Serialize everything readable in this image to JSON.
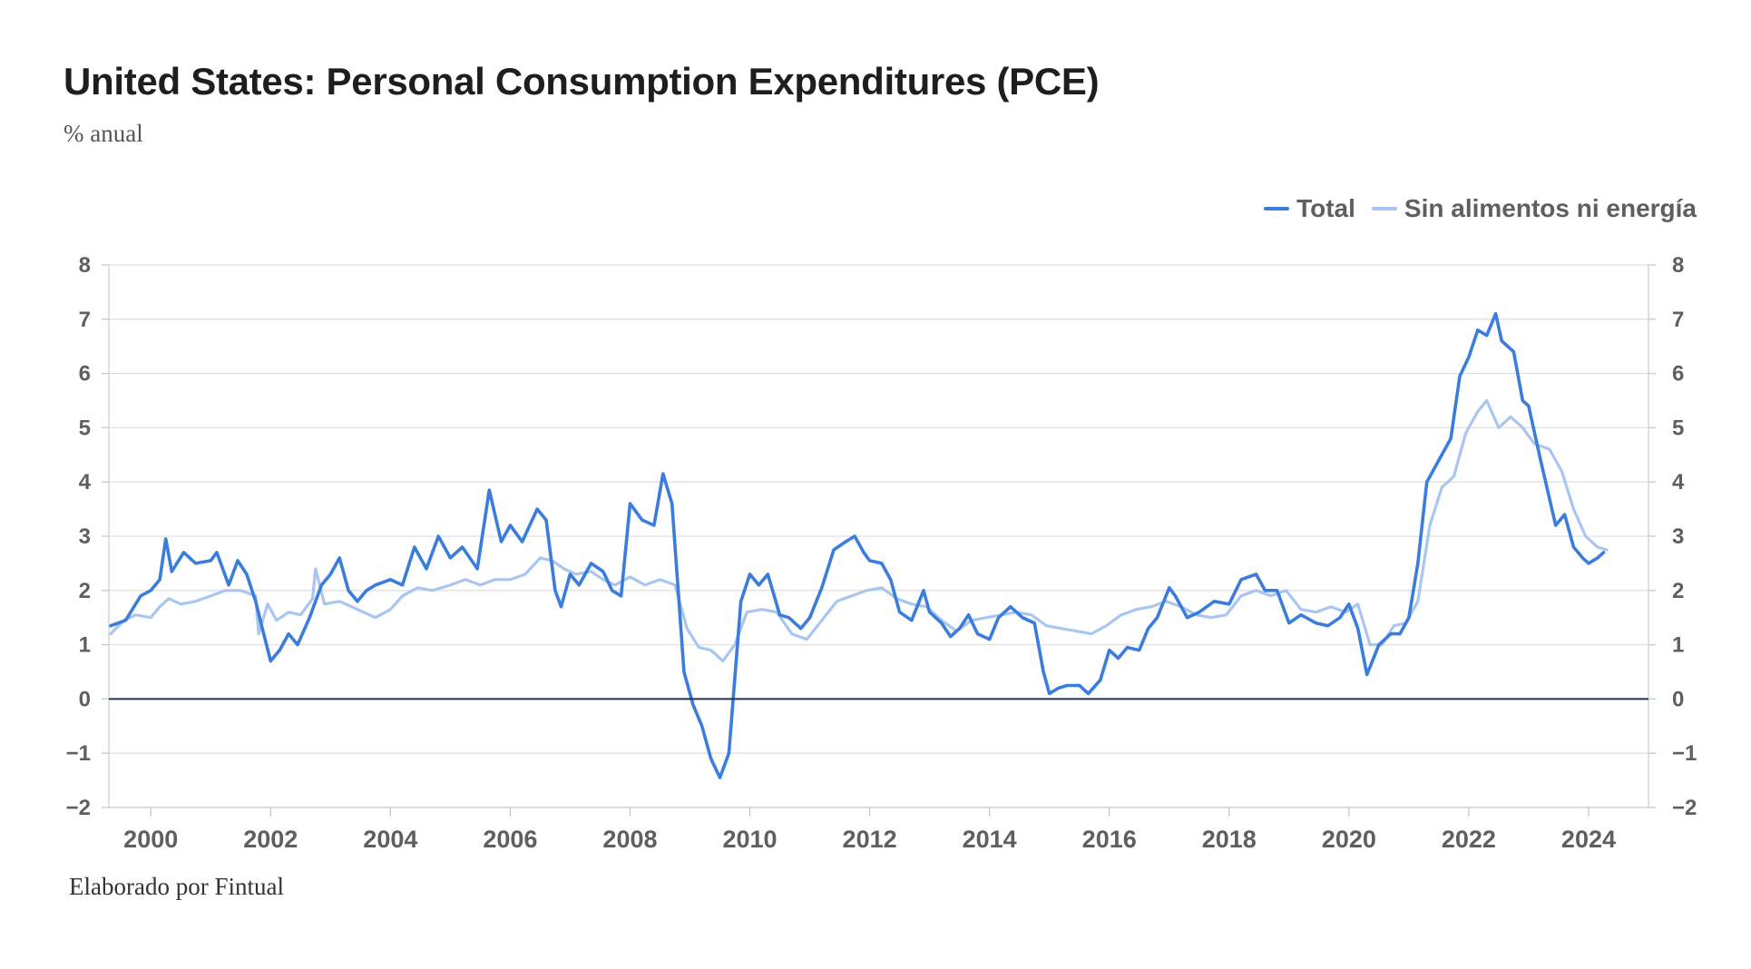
{
  "header": {
    "title": "United States: Personal Consumption Expenditures (PCE)",
    "subtitle": "% anual"
  },
  "footer": {
    "credit": "Elaborado por Fintual"
  },
  "colors": {
    "total": "#3b7ddd",
    "core": "#a9c6f0",
    "zero_line": "#1f3350",
    "grid": "#e0e0e0"
  },
  "chart_data": {
    "type": "line",
    "title": "United States: Personal Consumption Expenditures (PCE)",
    "subtitle": "% anual",
    "xlabel": "",
    "ylabel": "",
    "xlim": [
      1999.3,
      2025.0
    ],
    "ylim": [
      -2,
      8
    ],
    "y_ticks": [
      -2,
      -1,
      0,
      1,
      2,
      3,
      4,
      5,
      6,
      7,
      8
    ],
    "y_tick_labels": [
      "−2",
      "−1",
      "0",
      "1",
      "2",
      "3",
      "4",
      "5",
      "6",
      "7",
      "8"
    ],
    "x_ticks": [
      2000,
      2002,
      2004,
      2006,
      2008,
      2010,
      2012,
      2014,
      2016,
      2018,
      2020,
      2022,
      2024
    ],
    "x_tick_labels": [
      "2000",
      "2002",
      "2004",
      "2006",
      "2008",
      "2010",
      "2012",
      "2014",
      "2016",
      "2018",
      "2020",
      "2022",
      "2024"
    ],
    "legend_position": "top-right",
    "series": [
      {
        "name": "Total",
        "points": [
          [
            1999.33,
            1.35
          ],
          [
            1999.58,
            1.45
          ],
          [
            1999.83,
            1.9
          ],
          [
            2000.0,
            2.0
          ],
          [
            2000.15,
            2.2
          ],
          [
            2000.25,
            2.95
          ],
          [
            2000.35,
            2.35
          ],
          [
            2000.55,
            2.7
          ],
          [
            2000.75,
            2.5
          ],
          [
            2001.0,
            2.55
          ],
          [
            2001.1,
            2.7
          ],
          [
            2001.3,
            2.1
          ],
          [
            2001.45,
            2.55
          ],
          [
            2001.6,
            2.3
          ],
          [
            2001.75,
            1.8
          ],
          [
            2001.85,
            1.35
          ],
          [
            2002.0,
            0.7
          ],
          [
            2002.15,
            0.9
          ],
          [
            2002.3,
            1.2
          ],
          [
            2002.45,
            1.0
          ],
          [
            2002.65,
            1.5
          ],
          [
            2002.85,
            2.1
          ],
          [
            2003.0,
            2.3
          ],
          [
            2003.15,
            2.6
          ],
          [
            2003.3,
            2.0
          ],
          [
            2003.45,
            1.8
          ],
          [
            2003.6,
            2.0
          ],
          [
            2003.75,
            2.1
          ],
          [
            2004.0,
            2.2
          ],
          [
            2004.2,
            2.1
          ],
          [
            2004.4,
            2.8
          ],
          [
            2004.6,
            2.4
          ],
          [
            2004.8,
            3.0
          ],
          [
            2005.0,
            2.6
          ],
          [
            2005.2,
            2.8
          ],
          [
            2005.45,
            2.4
          ],
          [
            2005.65,
            3.85
          ],
          [
            2005.85,
            2.9
          ],
          [
            2006.0,
            3.2
          ],
          [
            2006.2,
            2.9
          ],
          [
            2006.45,
            3.5
          ],
          [
            2006.6,
            3.3
          ],
          [
            2006.75,
            2.0
          ],
          [
            2006.85,
            1.7
          ],
          [
            2007.0,
            2.3
          ],
          [
            2007.15,
            2.1
          ],
          [
            2007.35,
            2.5
          ],
          [
            2007.55,
            2.35
          ],
          [
            2007.7,
            2.0
          ],
          [
            2007.85,
            1.9
          ],
          [
            2008.0,
            3.6
          ],
          [
            2008.2,
            3.3
          ],
          [
            2008.4,
            3.2
          ],
          [
            2008.55,
            4.15
          ],
          [
            2008.7,
            3.6
          ],
          [
            2008.9,
            0.5
          ],
          [
            2009.05,
            -0.1
          ],
          [
            2009.2,
            -0.5
          ],
          [
            2009.35,
            -1.1
          ],
          [
            2009.5,
            -1.45
          ],
          [
            2009.65,
            -1.0
          ],
          [
            2009.85,
            1.8
          ],
          [
            2010.0,
            2.3
          ],
          [
            2010.15,
            2.1
          ],
          [
            2010.3,
            2.3
          ],
          [
            2010.5,
            1.55
          ],
          [
            2010.65,
            1.5
          ],
          [
            2010.85,
            1.3
          ],
          [
            2011.0,
            1.5
          ],
          [
            2011.2,
            2.05
          ],
          [
            2011.4,
            2.75
          ],
          [
            2011.6,
            2.9
          ],
          [
            2011.75,
            3.0
          ],
          [
            2011.9,
            2.7
          ],
          [
            2012.0,
            2.55
          ],
          [
            2012.2,
            2.5
          ],
          [
            2012.35,
            2.2
          ],
          [
            2012.5,
            1.6
          ],
          [
            2012.7,
            1.45
          ],
          [
            2012.9,
            2.0
          ],
          [
            2013.0,
            1.6
          ],
          [
            2013.2,
            1.4
          ],
          [
            2013.35,
            1.15
          ],
          [
            2013.5,
            1.3
          ],
          [
            2013.65,
            1.55
          ],
          [
            2013.8,
            1.2
          ],
          [
            2014.0,
            1.1
          ],
          [
            2014.15,
            1.5
          ],
          [
            2014.35,
            1.7
          ],
          [
            2014.55,
            1.5
          ],
          [
            2014.75,
            1.4
          ],
          [
            2014.9,
            0.5
          ],
          [
            2015.0,
            0.1
          ],
          [
            2015.15,
            0.2
          ],
          [
            2015.3,
            0.25
          ],
          [
            2015.5,
            0.25
          ],
          [
            2015.65,
            0.1
          ],
          [
            2015.85,
            0.35
          ],
          [
            2016.0,
            0.9
          ],
          [
            2016.15,
            0.75
          ],
          [
            2016.3,
            0.95
          ],
          [
            2016.5,
            0.9
          ],
          [
            2016.65,
            1.3
          ],
          [
            2016.8,
            1.5
          ],
          [
            2017.0,
            2.05
          ],
          [
            2017.1,
            1.9
          ],
          [
            2017.3,
            1.5
          ],
          [
            2017.5,
            1.6
          ],
          [
            2017.75,
            1.8
          ],
          [
            2018.0,
            1.75
          ],
          [
            2018.2,
            2.2
          ],
          [
            2018.45,
            2.3
          ],
          [
            2018.6,
            2.0
          ],
          [
            2018.8,
            2.0
          ],
          [
            2019.0,
            1.4
          ],
          [
            2019.2,
            1.55
          ],
          [
            2019.45,
            1.4
          ],
          [
            2019.65,
            1.35
          ],
          [
            2019.85,
            1.5
          ],
          [
            2020.0,
            1.75
          ],
          [
            2020.15,
            1.3
          ],
          [
            2020.3,
            0.45
          ],
          [
            2020.5,
            1.0
          ],
          [
            2020.7,
            1.2
          ],
          [
            2020.85,
            1.2
          ],
          [
            2021.0,
            1.5
          ],
          [
            2021.15,
            2.5
          ],
          [
            2021.3,
            4.0
          ],
          [
            2021.5,
            4.4
          ],
          [
            2021.7,
            4.8
          ],
          [
            2021.85,
            5.95
          ],
          [
            2022.0,
            6.3
          ],
          [
            2022.15,
            6.8
          ],
          [
            2022.3,
            6.7
          ],
          [
            2022.45,
            7.1
          ],
          [
            2022.55,
            6.6
          ],
          [
            2022.75,
            6.4
          ],
          [
            2022.9,
            5.5
          ],
          [
            2023.0,
            5.4
          ],
          [
            2023.2,
            4.4
          ],
          [
            2023.45,
            3.2
          ],
          [
            2023.6,
            3.4
          ],
          [
            2023.75,
            2.8
          ],
          [
            2023.9,
            2.6
          ],
          [
            2024.0,
            2.5
          ],
          [
            2024.15,
            2.6
          ],
          [
            2024.25,
            2.7
          ]
        ]
      },
      {
        "name": "Sin alimentos ni energía",
        "points": [
          [
            1999.33,
            1.2
          ],
          [
            1999.55,
            1.45
          ],
          [
            1999.75,
            1.55
          ],
          [
            2000.0,
            1.5
          ],
          [
            2000.15,
            1.7
          ],
          [
            2000.3,
            1.85
          ],
          [
            2000.5,
            1.75
          ],
          [
            2000.75,
            1.8
          ],
          [
            2001.0,
            1.9
          ],
          [
            2001.25,
            2.0
          ],
          [
            2001.5,
            2.0
          ],
          [
            2001.75,
            1.9
          ],
          [
            2001.8,
            1.2
          ],
          [
            2001.95,
            1.75
          ],
          [
            2002.1,
            1.45
          ],
          [
            2002.3,
            1.6
          ],
          [
            2002.5,
            1.55
          ],
          [
            2002.7,
            1.85
          ],
          [
            2002.75,
            2.4
          ],
          [
            2002.9,
            1.75
          ],
          [
            2003.15,
            1.8
          ],
          [
            2003.35,
            1.7
          ],
          [
            2003.55,
            1.6
          ],
          [
            2003.75,
            1.5
          ],
          [
            2004.0,
            1.65
          ],
          [
            2004.2,
            1.9
          ],
          [
            2004.45,
            2.05
          ],
          [
            2004.7,
            2.0
          ],
          [
            2005.0,
            2.1
          ],
          [
            2005.25,
            2.2
          ],
          [
            2005.5,
            2.1
          ],
          [
            2005.75,
            2.2
          ],
          [
            2006.0,
            2.2
          ],
          [
            2006.25,
            2.3
          ],
          [
            2006.5,
            2.6
          ],
          [
            2006.7,
            2.55
          ],
          [
            2006.9,
            2.4
          ],
          [
            2007.1,
            2.3
          ],
          [
            2007.35,
            2.35
          ],
          [
            2007.55,
            2.2
          ],
          [
            2007.75,
            2.1
          ],
          [
            2008.0,
            2.25
          ],
          [
            2008.25,
            2.1
          ],
          [
            2008.5,
            2.2
          ],
          [
            2008.75,
            2.1
          ],
          [
            2008.95,
            1.3
          ],
          [
            2009.15,
            0.95
          ],
          [
            2009.35,
            0.9
          ],
          [
            2009.55,
            0.7
          ],
          [
            2009.75,
            1.0
          ],
          [
            2009.95,
            1.6
          ],
          [
            2010.2,
            1.65
          ],
          [
            2010.45,
            1.6
          ],
          [
            2010.7,
            1.2
          ],
          [
            2010.95,
            1.1
          ],
          [
            2011.2,
            1.45
          ],
          [
            2011.45,
            1.8
          ],
          [
            2011.7,
            1.9
          ],
          [
            2011.95,
            2.0
          ],
          [
            2012.2,
            2.05
          ],
          [
            2012.45,
            1.85
          ],
          [
            2012.7,
            1.75
          ],
          [
            2012.95,
            1.7
          ],
          [
            2013.2,
            1.45
          ],
          [
            2013.45,
            1.25
          ],
          [
            2013.7,
            1.45
          ],
          [
            2013.95,
            1.5
          ],
          [
            2014.2,
            1.55
          ],
          [
            2014.45,
            1.6
          ],
          [
            2014.7,
            1.55
          ],
          [
            2014.95,
            1.35
          ],
          [
            2015.2,
            1.3
          ],
          [
            2015.45,
            1.25
          ],
          [
            2015.7,
            1.2
          ],
          [
            2015.95,
            1.35
          ],
          [
            2016.2,
            1.55
          ],
          [
            2016.45,
            1.65
          ],
          [
            2016.7,
            1.7
          ],
          [
            2016.95,
            1.8
          ],
          [
            2017.2,
            1.7
          ],
          [
            2017.45,
            1.55
          ],
          [
            2017.7,
            1.5
          ],
          [
            2017.95,
            1.55
          ],
          [
            2018.2,
            1.9
          ],
          [
            2018.45,
            2.0
          ],
          [
            2018.7,
            1.9
          ],
          [
            2018.95,
            2.0
          ],
          [
            2019.2,
            1.65
          ],
          [
            2019.45,
            1.6
          ],
          [
            2019.7,
            1.7
          ],
          [
            2019.95,
            1.6
          ],
          [
            2020.15,
            1.75
          ],
          [
            2020.35,
            1.0
          ],
          [
            2020.55,
            1.0
          ],
          [
            2020.75,
            1.35
          ],
          [
            2020.95,
            1.4
          ],
          [
            2021.15,
            1.8
          ],
          [
            2021.35,
            3.2
          ],
          [
            2021.55,
            3.9
          ],
          [
            2021.75,
            4.1
          ],
          [
            2021.95,
            4.9
          ],
          [
            2022.15,
            5.3
          ],
          [
            2022.3,
            5.5
          ],
          [
            2022.5,
            5.0
          ],
          [
            2022.7,
            5.2
          ],
          [
            2022.9,
            5.0
          ],
          [
            2023.1,
            4.7
          ],
          [
            2023.35,
            4.6
          ],
          [
            2023.55,
            4.2
          ],
          [
            2023.75,
            3.5
          ],
          [
            2023.95,
            3.0
          ],
          [
            2024.15,
            2.8
          ],
          [
            2024.3,
            2.75
          ]
        ]
      }
    ]
  }
}
